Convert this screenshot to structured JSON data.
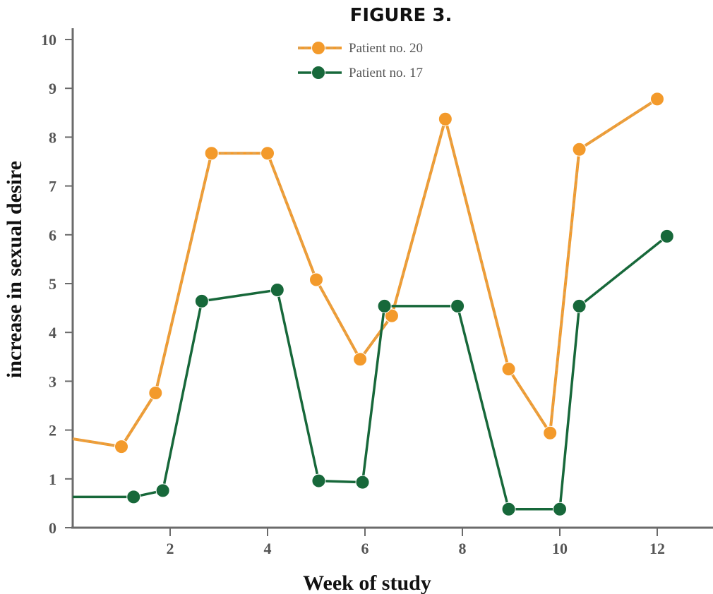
{
  "chart_data": {
    "type": "line",
    "title": "FIGURE 3.",
    "xlabel": "Week of study",
    "ylabel": "increase in sexual desire",
    "xlim": [
      0,
      13
    ],
    "ylim": [
      0,
      10
    ],
    "x_ticks": [
      2,
      4,
      6,
      8,
      10,
      12
    ],
    "y_ticks": [
      0,
      1,
      2,
      3,
      4,
      5,
      6,
      7,
      8,
      9,
      10
    ],
    "grid": false,
    "legend_position": "top-center",
    "series": [
      {
        "name": "Patient no. 20",
        "color": "#f39a2b",
        "line_color": "#d9a35a",
        "line_style": "dashed",
        "points": [
          {
            "x": 0,
            "y": 1.82
          },
          {
            "x": 1.0,
            "y": 1.66
          },
          {
            "x": 1.7,
            "y": 2.76
          },
          {
            "x": 2.85,
            "y": 7.67
          },
          {
            "x": 4.0,
            "y": 7.67
          },
          {
            "x": 5.0,
            "y": 5.08
          },
          {
            "x": 5.9,
            "y": 3.45
          },
          {
            "x": 6.55,
            "y": 4.34
          },
          {
            "x": 7.65,
            "y": 8.37
          },
          {
            "x": 8.95,
            "y": 3.25
          },
          {
            "x": 9.8,
            "y": 1.94
          },
          {
            "x": 10.4,
            "y": 7.75
          },
          {
            "x": 12.0,
            "y": 8.78
          }
        ]
      },
      {
        "name": "Patient no. 17",
        "color": "#17683a",
        "line_color": "#17683a",
        "line_style": "solid",
        "points": [
          {
            "x": 0,
            "y": 0.63
          },
          {
            "x": 1.25,
            "y": 0.63
          },
          {
            "x": 1.85,
            "y": 0.76
          },
          {
            "x": 2.65,
            "y": 4.64
          },
          {
            "x": 4.2,
            "y": 4.87
          },
          {
            "x": 5.05,
            "y": 0.96
          },
          {
            "x": 5.95,
            "y": 0.93
          },
          {
            "x": 6.4,
            "y": 4.54
          },
          {
            "x": 7.9,
            "y": 4.54
          },
          {
            "x": 8.95,
            "y": 0.38
          },
          {
            "x": 10.0,
            "y": 0.38
          },
          {
            "x": 10.4,
            "y": 4.54
          },
          {
            "x": 12.2,
            "y": 5.97
          }
        ]
      }
    ]
  }
}
